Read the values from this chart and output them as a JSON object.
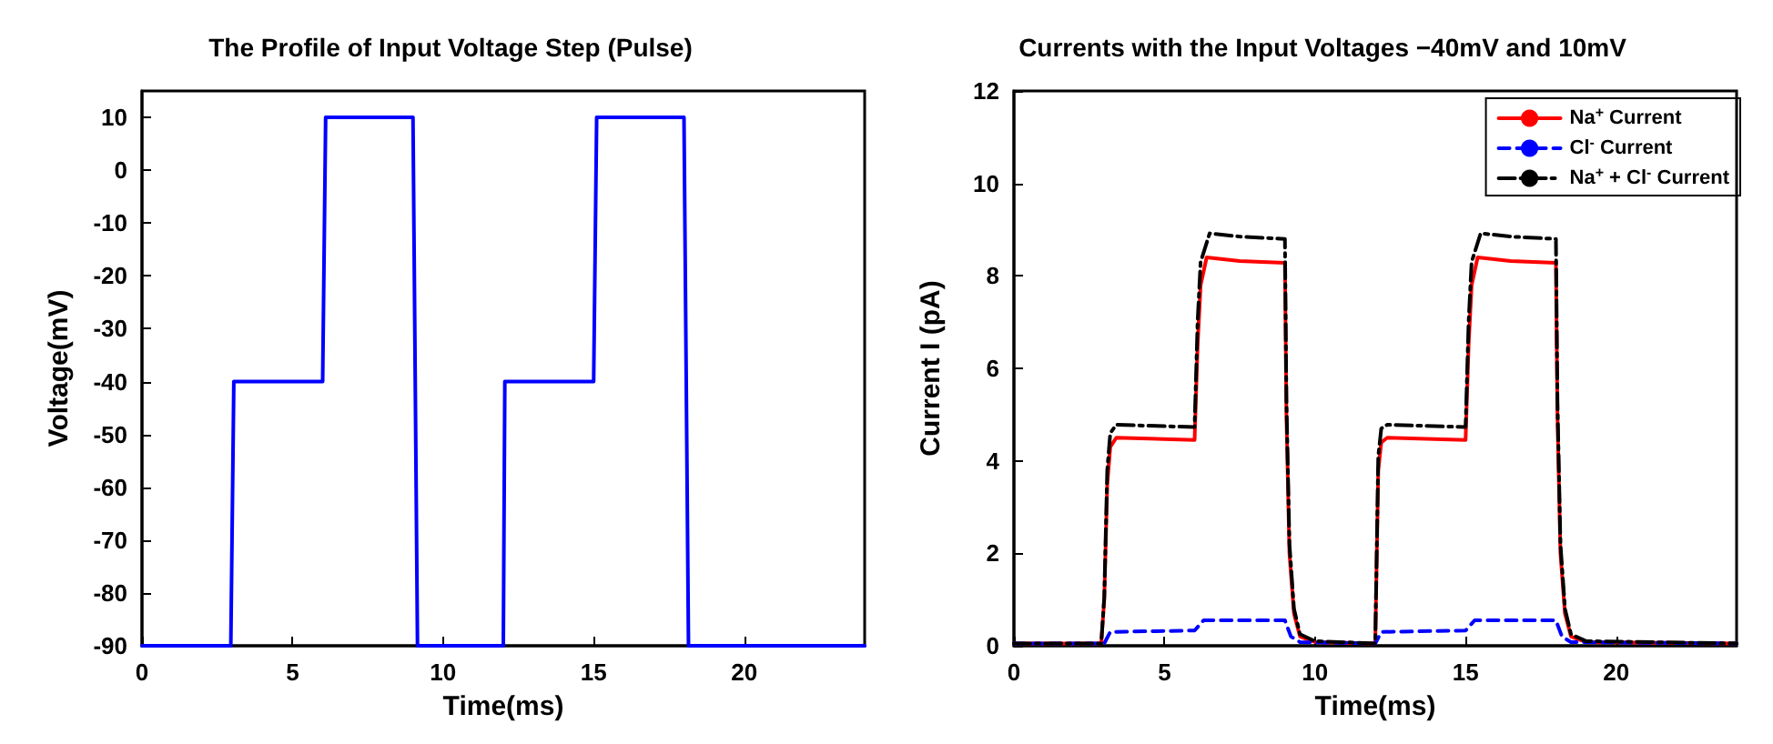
{
  "chart_data": [
    {
      "type": "line",
      "title": "The Profile of Input Voltage Step (Pulse)",
      "xlabel": "Time(ms)",
      "ylabel": "Voltage(mV)",
      "xlim": [
        0,
        24
      ],
      "ylim": [
        -90,
        15
      ],
      "xticks": [
        0,
        5,
        10,
        15,
        20
      ],
      "yticks": [
        -90,
        -80,
        -70,
        -60,
        -50,
        -40,
        -30,
        -20,
        -10,
        0,
        10
      ],
      "grid": false,
      "legend": false,
      "marker": "none",
      "series": [
        {
          "color": "#0000ff",
          "line_style": "solid",
          "x": [
            0,
            2.95,
            3.05,
            6,
            6.1,
            9,
            9.15,
            12,
            12.05,
            15,
            15.1,
            18,
            18.15,
            24
          ],
          "values": [
            -90,
            -90,
            -40,
            -40,
            10,
            10,
            -90,
            -90,
            -40,
            -40,
            10,
            10,
            -90,
            -90
          ]
        }
      ]
    },
    {
      "type": "line",
      "title": "Currents with the Input Voltages −40mV and 10mV",
      "xlabel": "Time(ms)",
      "ylabel": "Current I (pA)",
      "xlim": [
        0,
        24
      ],
      "ylim": [
        0,
        12
      ],
      "xticks": [
        0,
        5,
        10,
        15,
        20
      ],
      "yticks": [
        0,
        2,
        4,
        6,
        8,
        10,
        12
      ],
      "grid": false,
      "legend": "top right",
      "marker": "none",
      "series": [
        {
          "name": "Na$^{+}$ Current",
          "color": "#ff0000",
          "line_style": "solid",
          "x": [
            0,
            2.9,
            3.0,
            3.1,
            3.2,
            3.4,
            6.0,
            6.1,
            6.2,
            6.4,
            7.5,
            9.0,
            9.05,
            9.15,
            9.3,
            9.5,
            10,
            12,
            12.1,
            12.2,
            12.4,
            15.0,
            15.1,
            15.2,
            15.4,
            16.5,
            18.0,
            18.05,
            18.15,
            18.3,
            18.5,
            19,
            24
          ],
          "values": [
            0.05,
            0.05,
            1.0,
            3.5,
            4.3,
            4.5,
            4.45,
            6.5,
            7.8,
            8.4,
            8.32,
            8.28,
            5.0,
            2.0,
            0.7,
            0.2,
            0.08,
            0.05,
            3.8,
            4.4,
            4.5,
            4.45,
            6.5,
            7.8,
            8.4,
            8.32,
            8.28,
            5.0,
            2.0,
            0.7,
            0.2,
            0.08,
            0.05
          ]
        },
        {
          "name": "Cl$^{-}$ Current",
          "color": "#0000ff",
          "line_style": "dashed",
          "x": [
            0,
            3.0,
            3.2,
            6.0,
            6.3,
            9.0,
            9.2,
            9.5,
            12,
            12.2,
            15.0,
            15.3,
            18.0,
            18.2,
            18.5,
            24
          ],
          "values": [
            0.05,
            0.05,
            0.3,
            0.33,
            0.55,
            0.55,
            0.2,
            0.08,
            0.05,
            0.3,
            0.33,
            0.55,
            0.55,
            0.2,
            0.08,
            0.05
          ]
        },
        {
          "name": "Na$^{+}$ + Cl$^{-}$ Current",
          "color": "#000000",
          "line_style": "dashdot",
          "x": [
            0,
            2.9,
            3.0,
            3.1,
            3.2,
            3.4,
            6.0,
            6.1,
            6.2,
            6.5,
            7.5,
            9.0,
            9.05,
            9.15,
            9.3,
            9.5,
            10,
            12,
            12.1,
            12.2,
            12.4,
            15.0,
            15.1,
            15.2,
            15.5,
            16.5,
            18.0,
            18.05,
            18.15,
            18.3,
            18.5,
            19,
            24
          ],
          "values": [
            0.05,
            0.05,
            1.05,
            3.8,
            4.6,
            4.78,
            4.73,
            7.0,
            8.3,
            8.92,
            8.85,
            8.8,
            5.3,
            2.2,
            0.8,
            0.25,
            0.1,
            0.05,
            4.1,
            4.7,
            4.78,
            4.73,
            7.0,
            8.3,
            8.92,
            8.85,
            8.8,
            5.3,
            2.2,
            0.8,
            0.25,
            0.1,
            0.05
          ]
        }
      ]
    }
  ]
}
